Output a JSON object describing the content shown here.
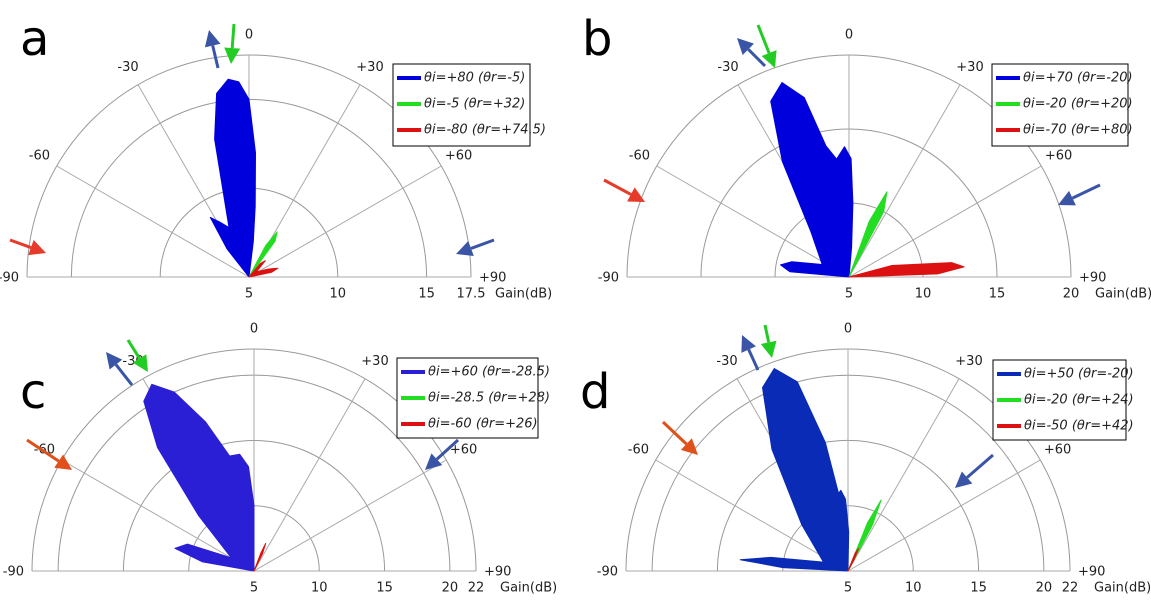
{
  "chart_data": [
    {
      "type": "polar",
      "label": "a",
      "axis_label": "Gain(dB)",
      "rlim": [
        5,
        17.5
      ],
      "rticks": [
        5,
        10,
        15,
        17.5
      ],
      "thetaticks": [
        -90,
        -60,
        -30,
        0,
        {
          "value": 30,
          "label": "+30"
        },
        {
          "value": 60,
          "label": "+60"
        },
        {
          "value": 90,
          "label": "+90"
        }
      ],
      "series": [
        {
          "name": "θi=+80 (θr=-5)",
          "color": "#0000dd",
          "x": [
            -40,
            -38,
            -33,
            -28,
            -22,
            -14,
            -10,
            -6,
            -3,
            0,
            3,
            5,
            7,
            10
          ],
          "values": [
            5,
            7,
            9,
            8.5,
            8,
            13,
            15.5,
            16.2,
            16,
            15,
            12,
            9,
            7,
            5
          ]
        },
        {
          "name": "θi=-5 (θr=+32)",
          "color": "#22dd22",
          "x": [
            25,
            28,
            32,
            36,
            40
          ],
          "values": [
            5,
            7,
            8,
            7.5,
            5
          ]
        },
        {
          "name": "θi=-80 (θr=+74.5)",
          "color": "#dd1111",
          "x": [
            35,
            40,
            45,
            55,
            68,
            73,
            78,
            85
          ],
          "values": [
            5,
            6,
            6.3,
            5.5,
            6.2,
            6.7,
            6.3,
            5
          ]
        }
      ]
    },
    {
      "type": "polar",
      "label": "b",
      "axis_label": "Gain(dB)",
      "rlim": [
        5,
        20
      ],
      "rticks": [
        5,
        10,
        15,
        20
      ],
      "thetaticks": [
        -90,
        -60,
        -30,
        0,
        {
          "value": 30,
          "label": "+30"
        },
        {
          "value": 60,
          "label": "+60"
        },
        {
          "value": 90,
          "label": "+90"
        }
      ],
      "series": [
        {
          "name": "θi=+70 (θr=-20)",
          "color": "#0000dd",
          "x": [
            -88,
            -85,
            -80,
            -75,
            -65,
            -40,
            -30,
            -24,
            -19,
            -14,
            -10,
            -6,
            -2,
            1,
            3,
            5,
            8
          ],
          "values": [
            5,
            9,
            9.7,
            9,
            7,
            9,
            14,
            18,
            18.9,
            17.5,
            14,
            13,
            13.8,
            13,
            10,
            7,
            5
          ]
        },
        {
          "name": "θi=-20 (θr=+20)",
          "color": "#22dd22",
          "x": [
            15,
            20,
            24,
            28,
            32
          ],
          "values": [
            5,
            9,
            11.3,
            10,
            5
          ]
        },
        {
          "name": "θi=-70 (θr=+80)",
          "color": "#dd1111",
          "x": [
            60,
            75,
            82,
            85,
            88,
            90
          ],
          "values": [
            5,
            8,
            12,
            12.8,
            11,
            5
          ]
        }
      ]
    },
    {
      "type": "polar",
      "label": "c",
      "axis_label": "Gain(dB)",
      "rlim": [
        5,
        22
      ],
      "rticks": [
        5,
        10,
        15,
        20,
        22
      ],
      "thetaticks": [
        -90,
        -60,
        -30,
        0,
        {
          "value": 30,
          "label": "+30"
        },
        {
          "value": 60,
          "label": "+60"
        },
        {
          "value": 90,
          "label": "+90"
        }
      ],
      "series": [
        {
          "name": "θi=+60 (θr=-28.5)",
          "color": "#2a1fd4",
          "x": [
            -85,
            -80,
            -74,
            -68,
            -60,
            -45,
            -38,
            -33,
            -28.7,
            -24,
            -18,
            -12,
            -7,
            -3,
            0,
            3
          ],
          "values": [
            5,
            9,
            11.3,
            10.5,
            7,
            11,
            17,
            20.5,
            21.3,
            20,
            17,
            14,
            14,
            13,
            10,
            5
          ]
        },
        {
          "name": "θi=-28.5 (θr=+28)",
          "color": "#22dd22",
          "x": [
            25,
            27,
            30
          ],
          "values": [
            5,
            5.8,
            5
          ]
        },
        {
          "name": "θi=-60 (θr=+26)",
          "color": "#dd1111",
          "x": [
            18,
            21,
            23,
            26,
            30
          ],
          "values": [
            5,
            6.5,
            7.3,
            6.5,
            5
          ]
        }
      ]
    },
    {
      "type": "polar",
      "label": "d",
      "axis_label": "Gain(dB)",
      "rlim": [
        5,
        22
      ],
      "rticks": [
        5,
        10,
        15,
        20,
        22
      ],
      "thetaticks": [
        -90,
        -60,
        -30,
        0,
        {
          "value": 30,
          "label": "+30"
        },
        {
          "value": 60,
          "label": "+60"
        },
        {
          "value": 90,
          "label": "+90"
        }
      ],
      "series": [
        {
          "name": "θi=+50 (θr=-20)",
          "color": "#0a2bb5",
          "x": [
            -89,
            -87,
            -84,
            -80,
            -70,
            -45,
            -32,
            -25,
            -20,
            -15,
            -10,
            -7,
            -5,
            -2,
            1,
            3
          ],
          "values": [
            5,
            10,
            13.3,
            11,
            7,
            10,
            16,
            20.5,
            21.5,
            20,
            15,
            11,
            11.2,
            10.5,
            8,
            5
          ]
        },
        {
          "name": "θi=-20 (θr=+24)",
          "color": "#22dd22",
          "x": [
            18,
            22,
            25,
            28,
            32
          ],
          "values": [
            5,
            9,
            11,
            9,
            5
          ]
        },
        {
          "name": "θi=-50 (θr=+42)",
          "color": "#dd1111",
          "x": [
            18,
            22,
            25,
            28,
            32
          ],
          "values": [
            5,
            6.5,
            6.9,
            6,
            5
          ]
        }
      ]
    }
  ]
}
